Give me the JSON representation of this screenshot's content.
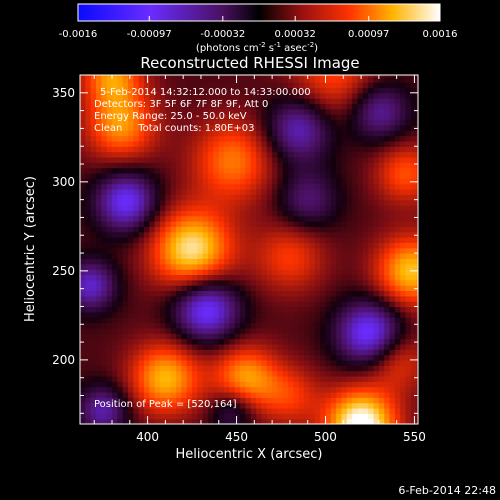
{
  "colorbar": {
    "tick_labels": [
      "-0.0016",
      "-0.00097",
      "-0.00032",
      "0.00032",
      "0.00097",
      "0.0016"
    ],
    "tick_values": [
      -0.0016,
      -0.00097,
      -0.00032,
      0.00032,
      0.00097,
      0.0016
    ],
    "range": [
      -0.0016,
      0.0016
    ],
    "unit_main": "(photons cm",
    "unit_exp1": "-2",
    "unit_mid": " s",
    "unit_exp2": "-1",
    "unit_tail": " asec",
    "unit_exp3": "-2",
    "unit_close": ")"
  },
  "chart_data": {
    "type": "heatmap",
    "title": "Reconstructed RHESSI Image",
    "xlabel": "Heliocentric X (arcsec)",
    "ylabel": "Heliocentric Y (arcsec)",
    "xlim": [
      362,
      552
    ],
    "ylim": [
      164,
      360
    ],
    "x_ticks": [
      400,
      450,
      500,
      550
    ],
    "y_ticks": [
      200,
      250,
      300,
      350
    ],
    "x_tick_labels": [
      "400",
      "450",
      "500",
      "550"
    ],
    "y_tick_labels": [
      "200",
      "250",
      "300",
      "350"
    ],
    "colormap": "rhessi-purple-red-yellow",
    "value_range": [
      -0.0016,
      0.0016
    ],
    "sources": [
      {
        "x": 520,
        "y": 164,
        "value": 0.0016,
        "width": 14
      },
      {
        "x": 425,
        "y": 262,
        "value": 0.00135,
        "width": 16
      },
      {
        "x": 410,
        "y": 190,
        "value": 0.0011,
        "width": 14
      },
      {
        "x": 455,
        "y": 190,
        "value": 0.001,
        "width": 13
      },
      {
        "x": 548,
        "y": 250,
        "value": 0.00115,
        "width": 14
      },
      {
        "x": 385,
        "y": 332,
        "value": 0.00095,
        "width": 14
      },
      {
        "x": 380,
        "y": 360,
        "value": 0.0009,
        "width": 12
      },
      {
        "x": 448,
        "y": 312,
        "value": 0.00085,
        "width": 16
      },
      {
        "x": 545,
        "y": 305,
        "value": 0.0007,
        "width": 12
      },
      {
        "x": 480,
        "y": 258,
        "value": 0.0006,
        "width": 14
      },
      {
        "x": 505,
        "y": 360,
        "value": 0.00065,
        "width": 18
      },
      {
        "x": 540,
        "y": 200,
        "value": 0.0006,
        "width": 12
      },
      {
        "x": 480,
        "y": 180,
        "value": 0.00055,
        "width": 12
      },
      {
        "x": 433,
        "y": 229,
        "value": -0.0012,
        "width": 13
      },
      {
        "x": 525,
        "y": 215,
        "value": -0.0012,
        "width": 13
      },
      {
        "x": 388,
        "y": 289,
        "value": -0.0011,
        "width": 12
      },
      {
        "x": 368,
        "y": 242,
        "value": -0.0009,
        "width": 10
      },
      {
        "x": 485,
        "y": 330,
        "value": -0.0009,
        "width": 13
      },
      {
        "x": 530,
        "y": 340,
        "value": -0.0008,
        "width": 12
      },
      {
        "x": 375,
        "y": 172,
        "value": -0.0008,
        "width": 10
      },
      {
        "x": 448,
        "y": 172,
        "value": -0.0006,
        "width": 9
      },
      {
        "x": 490,
        "y": 290,
        "value": -0.0006,
        "width": 12
      }
    ],
    "peak": [
      520,
      164
    ]
  },
  "annotations": {
    "time_range": "5-Feb-2014 14:32:12.000 to 14:33:00.000",
    "detectors": "Detectors: 3F 5F 6F 7F 8F 9F, Att 0",
    "energy": "Energy Range: 25.0 - 50.0 keV",
    "clean": "Clean     Total counts: 1.80E+03",
    "peak": "Position of Peak = [520,164]"
  },
  "timestamp": "6-Feb-2014 22:48"
}
